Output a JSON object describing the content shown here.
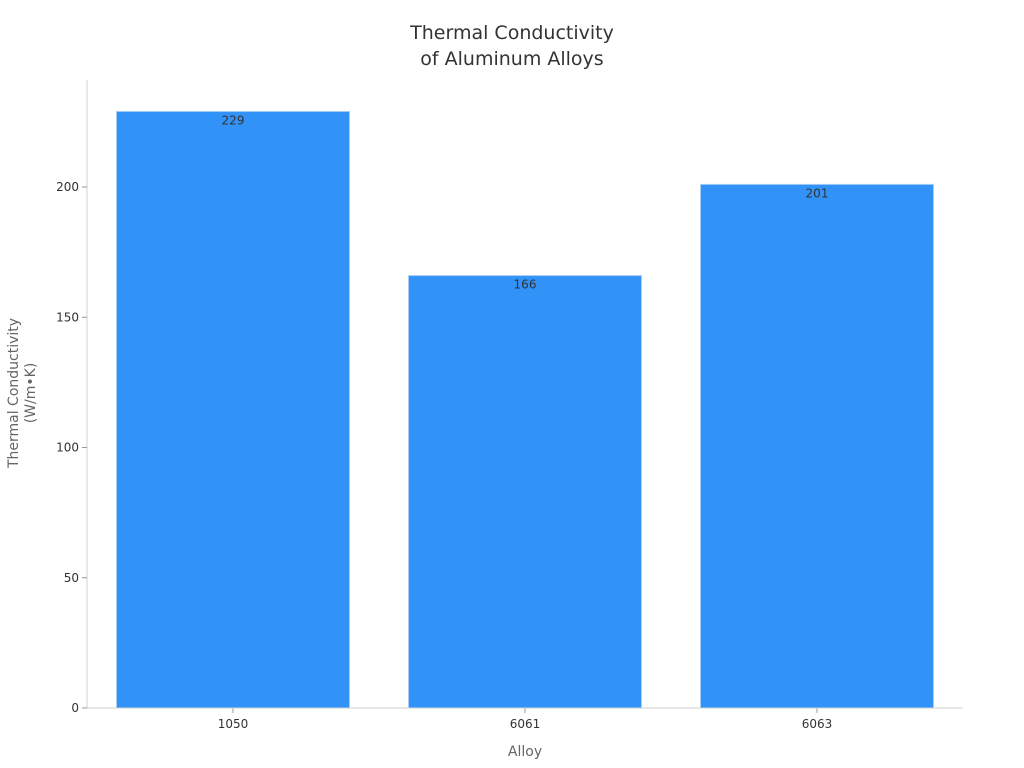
{
  "chart_data": {
    "type": "bar",
    "title": "Thermal Conductivity of Aluminum Alloys",
    "title_lines": [
      "Thermal Conductivity",
      "of Aluminum Alloys"
    ],
    "xlabel": "Alloy",
    "ylabel": "Thermal Conductivity (W/m•K)",
    "ylabel_lines": [
      "Thermal Conductivity",
      "(W/m•K)"
    ],
    "categories": [
      "1050",
      "6061",
      "6063"
    ],
    "values": [
      229,
      166,
      201
    ],
    "data_labels": [
      "229",
      "166",
      "201"
    ],
    "yticks": [
      0,
      50,
      100,
      150,
      200
    ],
    "ytick_labels": [
      "0",
      "50",
      "100",
      "150",
      "200"
    ],
    "ylim": [
      0,
      241
    ],
    "grid": false,
    "legend": null,
    "colors": {
      "bar": "#3192f8",
      "bar_edge": "#a8cdf6",
      "axis": "#d0d0d0",
      "text": "#333333",
      "label": "#666666"
    }
  }
}
